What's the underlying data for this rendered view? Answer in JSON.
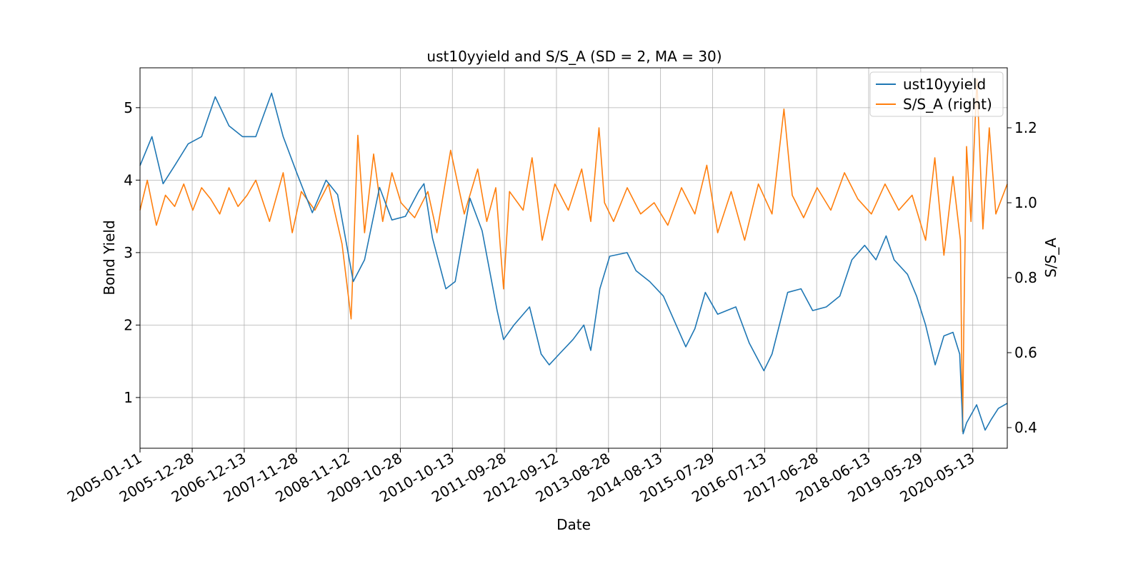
{
  "chart_data": {
    "type": "line",
    "title": "ust10yyield and S/S_A (SD = 2, MA = 30)",
    "xlabel": "Date",
    "ylabel": "Bond Yield",
    "ylabel_right": "S/S_A",
    "xlim": [
      "2005-01-11",
      "2020-12-31"
    ],
    "ylim": [
      0.3,
      5.55
    ],
    "ylim_right": [
      0.345,
      1.36
    ],
    "x_ticks": [
      "2005-01-11",
      "2005-12-28",
      "2006-12-13",
      "2007-11-28",
      "2008-11-12",
      "2009-10-28",
      "2010-10-13",
      "2011-09-28",
      "2012-09-12",
      "2013-08-28",
      "2014-08-13",
      "2015-07-29",
      "2016-07-13",
      "2017-06-28",
      "2018-06-13",
      "2019-05-29",
      "2020-05-13"
    ],
    "y_ticks": [
      "1",
      "2",
      "3",
      "4",
      "5"
    ],
    "y_ticks_right": [
      "0.4",
      "0.6",
      "0.8",
      "1.0",
      "1.2"
    ],
    "grid": true,
    "legend_position": "top-right",
    "series": [
      {
        "name": "ust10yyield",
        "axis": "left",
        "color": "#1f77b4",
        "x": [
          "2005-01-11",
          "2005-04-01",
          "2005-06-15",
          "2005-09-01",
          "2005-12-01",
          "2006-03-01",
          "2006-06-01",
          "2006-09-01",
          "2006-12-01",
          "2007-03-01",
          "2007-06-15",
          "2007-09-01",
          "2007-12-01",
          "2008-03-15",
          "2008-06-15",
          "2008-09-01",
          "2008-12-15",
          "2009-03-01",
          "2009-06-10",
          "2009-09-01",
          "2009-12-01",
          "2010-03-01",
          "2010-04-05",
          "2010-06-01",
          "2010-08-30",
          "2010-11-01",
          "2011-02-08",
          "2011-05-01",
          "2011-08-10",
          "2011-09-22",
          "2011-12-01",
          "2012-03-15",
          "2012-06-01",
          "2012-07-25",
          "2012-10-01",
          "2013-01-01",
          "2013-03-15",
          "2013-05-01",
          "2013-07-01",
          "2013-09-05",
          "2013-12-31",
          "2014-03-01",
          "2014-06-01",
          "2014-09-01",
          "2015-01-30",
          "2015-04-01",
          "2015-06-10",
          "2015-09-01",
          "2016-01-01",
          "2016-04-01",
          "2016-07-08",
          "2016-09-01",
          "2016-12-15",
          "2017-03-15",
          "2017-06-01",
          "2017-09-01",
          "2017-12-01",
          "2018-02-20",
          "2018-05-17",
          "2018-08-01",
          "2018-10-08",
          "2018-12-01",
          "2019-03-01",
          "2019-05-01",
          "2019-07-01",
          "2019-09-03",
          "2019-11-01",
          "2020-01-01",
          "2020-02-15",
          "2020-03-09",
          "2020-04-01",
          "2020-06-08",
          "2020-08-04",
          "2020-09-15",
          "2020-11-01",
          "2020-12-31"
        ],
        "values": [
          4.2,
          4.6,
          3.95,
          4.2,
          4.5,
          4.6,
          5.15,
          4.75,
          4.6,
          4.6,
          5.2,
          4.6,
          4.1,
          3.55,
          4.0,
          3.8,
          2.6,
          2.9,
          3.9,
          3.45,
          3.5,
          3.85,
          3.95,
          3.2,
          2.5,
          2.6,
          3.75,
          3.3,
          2.2,
          1.8,
          2.0,
          2.25,
          1.6,
          1.45,
          1.6,
          1.8,
          2.0,
          1.65,
          2.5,
          2.95,
          3.0,
          2.75,
          2.6,
          2.4,
          1.7,
          1.95,
          2.45,
          2.15,
          2.25,
          1.75,
          1.37,
          1.6,
          2.45,
          2.5,
          2.2,
          2.25,
          2.4,
          2.9,
          3.1,
          2.9,
          3.23,
          2.9,
          2.7,
          2.4,
          2.0,
          1.45,
          1.85,
          1.9,
          1.6,
          0.5,
          0.65,
          0.9,
          0.55,
          0.7,
          0.85,
          0.92
        ]
      },
      {
        "name": "S/S_A (right)",
        "axis": "right",
        "color": "#ff7f0e",
        "x": [
          "2005-01-11",
          "2005-03-01",
          "2005-05-01",
          "2005-07-01",
          "2005-09-01",
          "2005-11-01",
          "2006-01-01",
          "2006-03-01",
          "2006-05-01",
          "2006-07-01",
          "2006-09-01",
          "2006-11-01",
          "2007-01-01",
          "2007-03-01",
          "2007-06-01",
          "2007-09-01",
          "2007-11-01",
          "2008-01-01",
          "2008-04-01",
          "2008-07-01",
          "2008-10-01",
          "2008-12-01",
          "2009-01-15",
          "2009-03-01",
          "2009-05-01",
          "2009-07-01",
          "2009-09-01",
          "2009-11-01",
          "2010-02-01",
          "2010-05-01",
          "2010-07-01",
          "2010-10-01",
          "2011-01-01",
          "2011-04-01",
          "2011-06-01",
          "2011-08-01",
          "2011-09-22",
          "2011-11-01",
          "2012-02-01",
          "2012-04-01",
          "2012-06-08",
          "2012-09-01",
          "2012-12-01",
          "2013-03-01",
          "2013-05-01",
          "2013-06-25",
          "2013-08-01",
          "2013-10-01",
          "2014-01-01",
          "2014-04-01",
          "2014-07-01",
          "2014-10-01",
          "2015-01-01",
          "2015-04-01",
          "2015-06-20",
          "2015-09-01",
          "2015-12-01",
          "2016-03-01",
          "2016-06-01",
          "2016-09-01",
          "2016-11-20",
          "2017-01-15",
          "2017-04-01",
          "2017-07-01",
          "2017-10-01",
          "2018-01-01",
          "2018-04-01",
          "2018-07-01",
          "2018-10-01",
          "2019-01-01",
          "2019-04-01",
          "2019-07-01",
          "2019-09-01",
          "2019-11-01",
          "2020-01-01",
          "2020-02-20",
          "2020-03-05",
          "2020-03-15",
          "2020-04-01",
          "2020-05-01",
          "2020-06-10",
          "2020-07-20",
          "2020-09-01",
          "2020-10-15",
          "2020-12-31"
        ],
        "values": [
          0.98,
          1.06,
          0.94,
          1.02,
          0.99,
          1.05,
          0.98,
          1.04,
          1.01,
          0.97,
          1.04,
          0.99,
          1.02,
          1.06,
          0.95,
          1.08,
          0.92,
          1.03,
          0.98,
          1.05,
          0.89,
          0.69,
          1.18,
          0.92,
          1.13,
          0.95,
          1.08,
          1.0,
          0.96,
          1.03,
          0.92,
          1.14,
          0.97,
          1.09,
          0.95,
          1.04,
          0.77,
          1.03,
          0.98,
          1.12,
          0.9,
          1.05,
          0.98,
          1.09,
          0.95,
          1.2,
          1.0,
          0.95,
          1.04,
          0.97,
          1.0,
          0.94,
          1.04,
          0.97,
          1.1,
          0.92,
          1.03,
          0.9,
          1.05,
          0.97,
          1.25,
          1.02,
          0.96,
          1.04,
          0.98,
          1.08,
          1.01,
          0.97,
          1.05,
          0.98,
          1.02,
          0.9,
          1.12,
          0.86,
          1.07,
          0.9,
          0.39,
          0.7,
          1.15,
          0.95,
          1.33,
          0.93,
          1.2,
          0.97,
          1.05
        ]
      }
    ]
  }
}
